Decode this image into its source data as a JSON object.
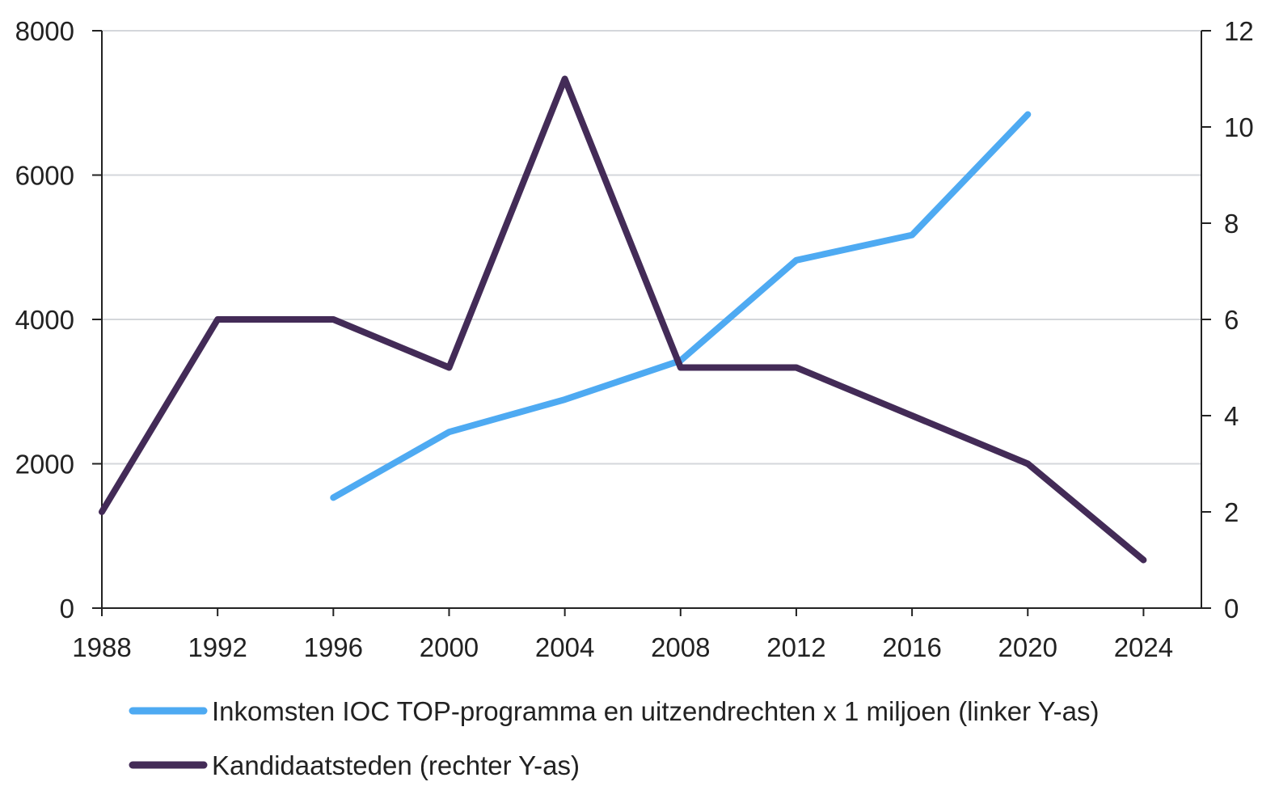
{
  "chart_data": {
    "type": "line",
    "x": [
      1988,
      1992,
      1996,
      2000,
      2004,
      2008,
      2012,
      2016,
      2020,
      2024
    ],
    "xlim": [
      1988,
      2026
    ],
    "xticks": [
      "1988",
      "1992",
      "1996",
      "2000",
      "2004",
      "2008",
      "2012",
      "2016",
      "2020",
      "2024"
    ],
    "y_left": {
      "ylim": [
        0,
        8000
      ],
      "ticks": [
        "0",
        "2000",
        "4000",
        "6000",
        "8000"
      ]
    },
    "y_right": {
      "ylim": [
        0,
        12
      ],
      "ticks": [
        "0",
        "2",
        "4",
        "6",
        "8",
        "10",
        "12"
      ]
    },
    "grid": true,
    "legend_position": "bottom",
    "series": [
      {
        "name": "Inkomsten IOC TOP-programma en uitzendrechten x 1 miljoen (linker Y-as)",
        "axis": "left",
        "color": "#4eaaf2",
        "values": [
          null,
          null,
          1530,
          2440,
          2890,
          3430,
          4820,
          5170,
          6840,
          null
        ]
      },
      {
        "name": "Kandidaatsteden (rechter Y-as)",
        "axis": "right",
        "color": "#432b57",
        "values": [
          2,
          6,
          6,
          5,
          11,
          5,
          5,
          4,
          3,
          1
        ]
      }
    ]
  }
}
